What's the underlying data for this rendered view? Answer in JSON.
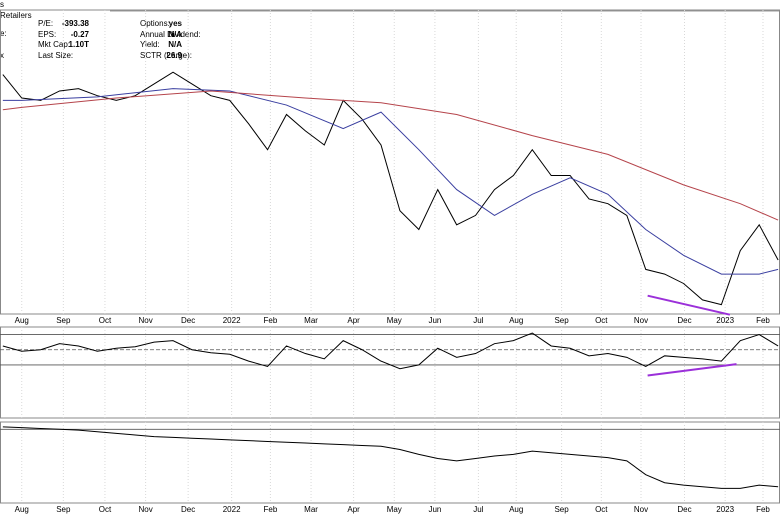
{
  "header": {
    "symbol_tail": "s",
    "sector": "Retailers",
    "side_labels": [
      "e:",
      "x"
    ],
    "stats_left": [
      {
        "label": "P/E:",
        "value": "-393.38"
      },
      {
        "label": "EPS:",
        "value": "-0.27"
      },
      {
        "label": "Mkt Cap:",
        "value": "1.10T"
      },
      {
        "label": "Last Size:",
        "value": ""
      }
    ],
    "stats_right": [
      {
        "label": "Options:",
        "value": "yes"
      },
      {
        "label": "Annual Dividend:",
        "value": "N/A"
      },
      {
        "label": "Yield:",
        "value": "N/A"
      },
      {
        "label": "SCTR (Large):",
        "value": "26.9"
      }
    ]
  },
  "chart_data": [
    {
      "type": "line",
      "xlim": [
        -2.3,
        80.2
      ],
      "ylim": [
        81,
        210.5
      ],
      "xticks": [
        {
          "value": 0,
          "label": "Aug"
        },
        {
          "value": 4.4,
          "label": "Sep"
        },
        {
          "value": 8.8,
          "label": "Oct"
        },
        {
          "value": 13.1,
          "label": "Nov"
        },
        {
          "value": 17.6,
          "label": "Dec"
        },
        {
          "value": 22.2,
          "label": "2022"
        },
        {
          "value": 26.3,
          "label": "Feb"
        },
        {
          "value": 30.6,
          "label": "Mar"
        },
        {
          "value": 35.1,
          "label": "Apr"
        },
        {
          "value": 39.4,
          "label": "May"
        },
        {
          "value": 43.7,
          "label": "Jun"
        },
        {
          "value": 48.3,
          "label": "Jul"
        },
        {
          "value": 52.3,
          "label": "Aug"
        },
        {
          "value": 57.1,
          "label": "Sep"
        },
        {
          "value": 61.3,
          "label": "Oct"
        },
        {
          "value": 65.5,
          "label": "Nov"
        },
        {
          "value": 70.1,
          "label": "Dec"
        },
        {
          "value": 74.4,
          "label": "2023"
        },
        {
          "value": 78.4,
          "label": "Feb"
        }
      ],
      "series": [
        {
          "color": "#000000",
          "x": [
            -2,
            0,
            2,
            4,
            6,
            8,
            10,
            12,
            14,
            16,
            18,
            20,
            22,
            24,
            26,
            28,
            30,
            32,
            34,
            36,
            38,
            40,
            42,
            44,
            46,
            48,
            50,
            52,
            54,
            56,
            58,
            60,
            62,
            64,
            66,
            68,
            70,
            72,
            74,
            76,
            78,
            80
          ],
          "values": [
            183,
            173,
            172,
            176,
            177,
            174,
            172,
            174,
            179,
            184,
            179,
            174,
            172,
            162,
            151,
            166,
            159,
            153,
            172,
            164,
            153,
            125,
            117,
            134,
            119,
            123,
            134,
            140,
            151,
            140,
            140,
            130,
            128,
            123,
            100,
            98,
            94,
            87,
            85,
            108,
            119,
            104
          ]
        },
        {
          "color": "#3a3fa0",
          "x": [
            -2,
            0,
            8,
            16,
            22,
            28,
            34,
            38,
            42,
            46,
            50,
            54,
            58,
            62,
            66,
            70,
            74,
            78,
            80
          ],
          "values": [
            172,
            172,
            173.5,
            177,
            176,
            170,
            160,
            167,
            151,
            134,
            123,
            132,
            139,
            132,
            117,
            106,
            98,
            98,
            100
          ]
        },
        {
          "color": "#b5444b",
          "x": [
            -2,
            0,
            10,
            20,
            30,
            38,
            46,
            54,
            62,
            70,
            76,
            80
          ],
          "values": [
            168,
            169,
            173,
            176,
            173,
            171,
            166,
            157,
            149,
            136,
            128,
            121
          ]
        }
      ],
      "trendlines": [
        {
          "color": "#9b30d9",
          "x": [
            66.2,
            74.9
          ],
          "values": [
            88.8,
            80.7
          ]
        }
      ]
    },
    {
      "type": "line",
      "xlim": [
        -2.3,
        80.2
      ],
      "ylim": [
        -40,
        80
      ],
      "levels": [
        70,
        50,
        30
      ],
      "series": [
        {
          "color": "#000000",
          "x": [
            -2,
            0,
            2,
            4,
            6,
            8,
            10,
            12,
            14,
            16,
            18,
            20,
            22,
            24,
            26,
            28,
            30,
            32,
            34,
            36,
            38,
            40,
            42,
            44,
            46,
            48,
            50,
            52,
            54,
            56,
            58,
            60,
            62,
            64,
            66,
            68,
            70,
            72,
            74,
            76,
            78,
            80
          ],
          "values": [
            55,
            48,
            50,
            58,
            55,
            48,
            52,
            54,
            60,
            62,
            50,
            46,
            44,
            35,
            28,
            55,
            45,
            38,
            62,
            50,
            35,
            25,
            30,
            52,
            40,
            45,
            58,
            62,
            72,
            55,
            52,
            42,
            45,
            40,
            28,
            42,
            40,
            38,
            35,
            62,
            70,
            55
          ]
        }
      ],
      "trendlines": [
        {
          "color": "#9b30d9",
          "x": [
            66.2,
            75.6
          ],
          "values": [
            16,
            31
          ]
        }
      ]
    },
    {
      "type": "line",
      "xlim": [
        -2.3,
        80.2
      ],
      "ylim": [
        0,
        100
      ],
      "levels": [
        91
      ],
      "xticks": [
        {
          "value": 0,
          "label": "Aug"
        },
        {
          "value": 4.4,
          "label": "Sep"
        },
        {
          "value": 8.8,
          "label": "Oct"
        },
        {
          "value": 13.1,
          "label": "Nov"
        },
        {
          "value": 17.6,
          "label": "Dec"
        },
        {
          "value": 22.2,
          "label": "2022"
        },
        {
          "value": 26.3,
          "label": "Feb"
        },
        {
          "value": 30.6,
          "label": "Mar"
        },
        {
          "value": 35.1,
          "label": "Apr"
        },
        {
          "value": 39.4,
          "label": "May"
        },
        {
          "value": 43.7,
          "label": "Jun"
        },
        {
          "value": 48.3,
          "label": "Jul"
        },
        {
          "value": 52.3,
          "label": "Aug"
        },
        {
          "value": 57.1,
          "label": "Sep"
        },
        {
          "value": 61.3,
          "label": "Oct"
        },
        {
          "value": 65.5,
          "label": "Nov"
        },
        {
          "value": 70.1,
          "label": "Dec"
        },
        {
          "value": 74.4,
          "label": "2023"
        },
        {
          "value": 78.4,
          "label": "Feb"
        }
      ],
      "series": [
        {
          "color": "#000000",
          "x": [
            -2,
            0,
            2,
            4,
            6,
            8,
            10,
            12,
            14,
            16,
            18,
            20,
            22,
            24,
            26,
            28,
            30,
            32,
            34,
            36,
            38,
            40,
            42,
            44,
            46,
            48,
            50,
            52,
            54,
            56,
            58,
            60,
            62,
            64,
            66,
            68,
            70,
            72,
            74,
            76,
            78,
            80
          ],
          "values": [
            94,
            93,
            92,
            91,
            90,
            88,
            86,
            84,
            82,
            81,
            80,
            79,
            78,
            77,
            76,
            75,
            74,
            73,
            72,
            71,
            70,
            66,
            60,
            55,
            52,
            55,
            58,
            60,
            64,
            62,
            60,
            58,
            56,
            52,
            35,
            25,
            22,
            20,
            18,
            18,
            22,
            20
          ]
        }
      ]
    }
  ]
}
